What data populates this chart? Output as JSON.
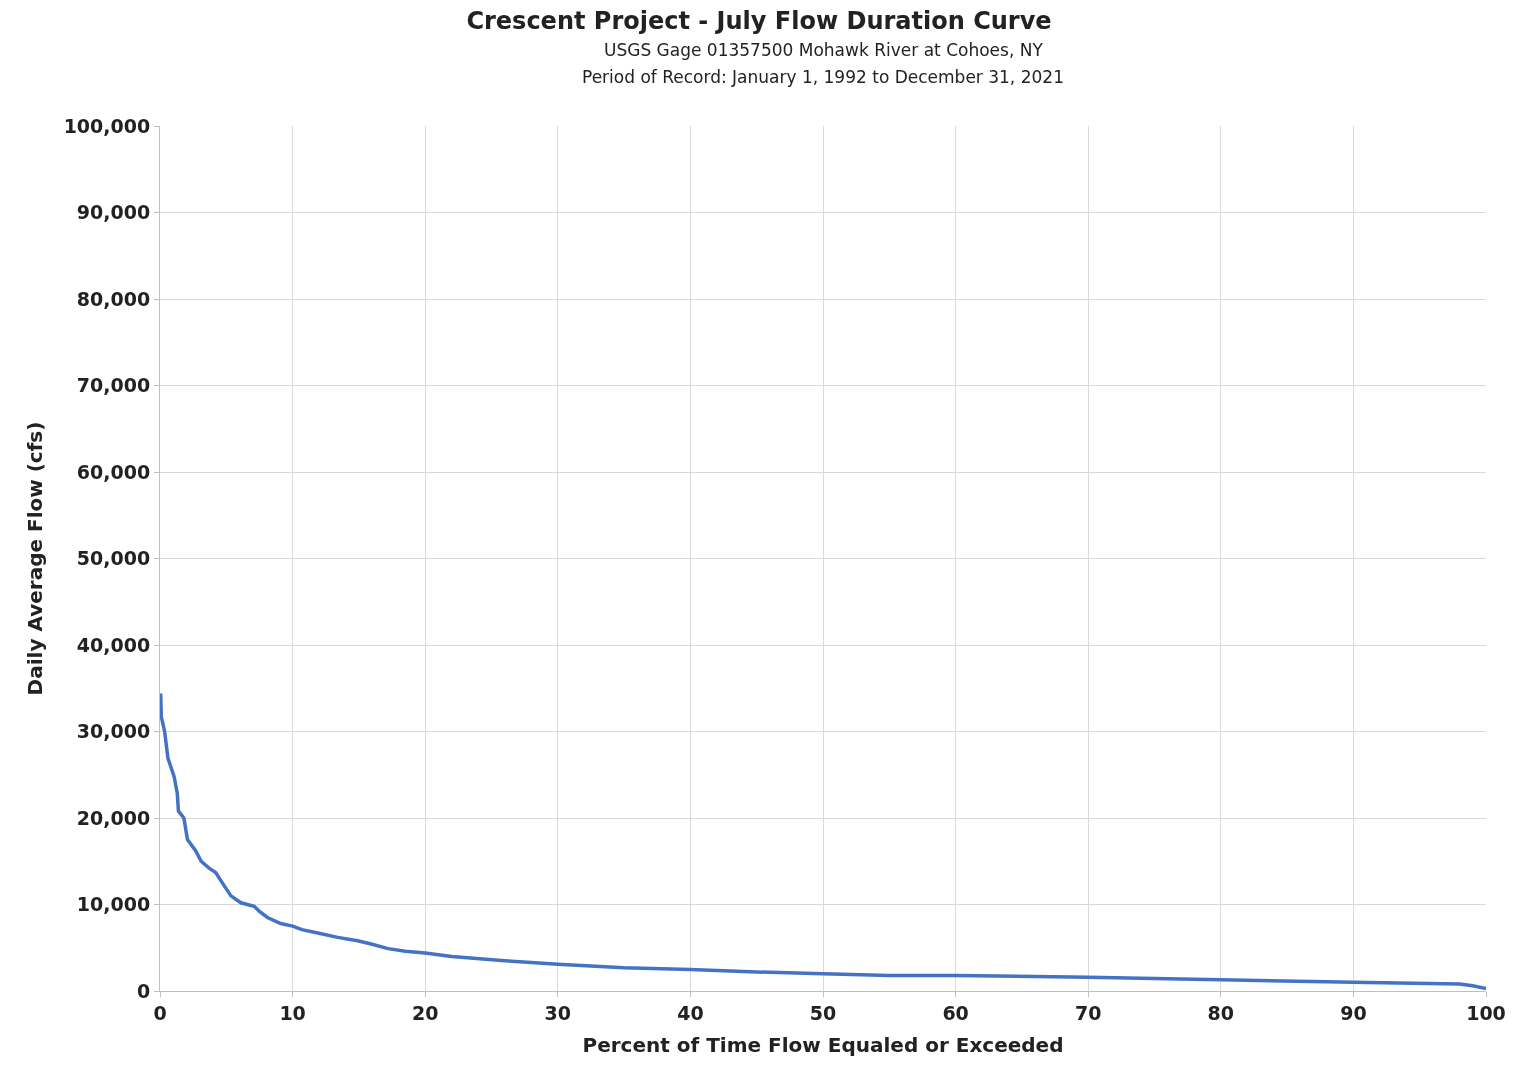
{
  "chart_data": {
    "type": "line",
    "title": "Crescent Project - July Flow Duration Curve",
    "subtitle": "USGS Gage 01357500 Mohawk River at Cohoes, NY\nPeriod of Record: January 1, 1992 to December 31, 2021",
    "xlabel": "Percent of Time Flow Equaled or Exceeded",
    "ylabel": "Daily Average Flow (cfs)",
    "x": [
      0.05,
      0.1,
      0.35,
      0.6,
      1.06,
      1.3,
      1.39,
      1.8,
      2.07,
      2.7,
      3.1,
      3.7,
      4.2,
      4.7,
      5.35,
      6.1,
      7.1,
      7.5,
      8.1,
      9.1,
      10,
      10.7,
      11.9,
      13.4,
      14.9,
      16,
      17.2,
      18.5,
      20,
      22,
      26,
      28,
      30,
      35,
      40,
      45,
      50,
      55,
      60,
      70,
      80,
      90,
      98,
      99,
      100
    ],
    "series": [
      {
        "color": "#4472c4",
        "values": [
          34400,
          31700,
          30000,
          26900,
          24800,
          22900,
          20800,
          20000,
          17500,
          16200,
          15000,
          14200,
          13700,
          12500,
          11000,
          10200,
          9800,
          9200,
          8500,
          7800,
          7500,
          7100,
          6700,
          6200,
          5800,
          5400,
          4900,
          4600,
          4400,
          4000,
          3500,
          3300,
          3100,
          2700,
          2500,
          2200,
          2000,
          1800,
          1800,
          1600,
          1300,
          1000,
          800,
          600,
          300
        ]
      }
    ],
    "xlim": [
      0,
      100
    ],
    "xticks": [
      0,
      10,
      20,
      30,
      40,
      50,
      60,
      70,
      80,
      90,
      100
    ],
    "ylim": [
      0,
      100000
    ],
    "yticks": [
      {
        "value": 0,
        "label": "0"
      },
      {
        "value": 10000,
        "label": "10,000"
      },
      {
        "value": 20000,
        "label": "20,000"
      },
      {
        "value": 30000,
        "label": "30,000"
      },
      {
        "value": 40000,
        "label": "40,000"
      },
      {
        "value": 50000,
        "label": "50,000"
      },
      {
        "value": 60000,
        "label": "60,000"
      },
      {
        "value": 70000,
        "label": "70,000"
      },
      {
        "value": 80000,
        "label": "80,000"
      },
      {
        "value": 90000,
        "label": "90,000"
      },
      {
        "value": 100000,
        "label": "100,000"
      }
    ],
    "grid": true,
    "marker": "none",
    "line_style": "solid"
  }
}
